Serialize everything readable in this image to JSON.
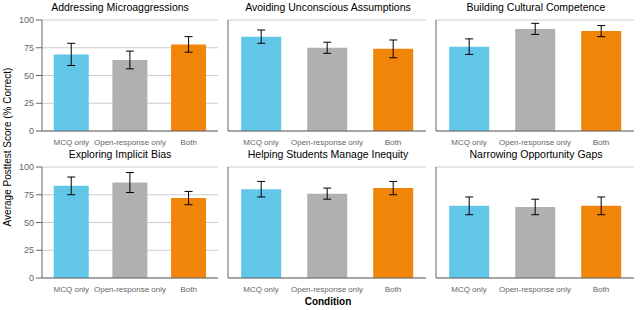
{
  "chart_data": [
    {
      "type": "bar",
      "title": "Addressing Microaggressions",
      "categories": [
        "MCQ only",
        "Open-response only",
        "Both"
      ],
      "values": [
        69,
        64,
        78
      ],
      "errors": [
        10,
        8,
        7
      ],
      "colors": [
        "#62C6E8",
        "#B0B0B0",
        "#F0850A"
      ],
      "ylim": [
        0,
        100
      ],
      "yticks": [
        0,
        25,
        50,
        75,
        100
      ],
      "grid": true,
      "ylabel": "Average Posttest Score (% Correct)"
    },
    {
      "type": "bar",
      "title": "Avoiding Unconscious Assumptions",
      "categories": [
        "MCQ only",
        "Open-response only",
        "Both"
      ],
      "values": [
        85,
        75,
        74
      ],
      "errors": [
        6,
        5,
        8
      ],
      "colors": [
        "#62C6E8",
        "#B0B0B0",
        "#F0850A"
      ],
      "ylim": [
        0,
        100
      ],
      "yticks": [
        0,
        25,
        50,
        75,
        100
      ],
      "grid": true,
      "tick_labels": "x"
    },
    {
      "type": "bar",
      "title": "Building Cultural Competence",
      "categories": [
        "MCQ only",
        "Open-response only",
        "Both"
      ],
      "values": [
        76,
        92,
        90
      ],
      "errors": [
        7,
        5,
        5
      ],
      "colors": [
        "#62C6E8",
        "#B0B0B0",
        "#F0850A"
      ],
      "ylim": [
        0,
        100
      ],
      "yticks": [
        0,
        25,
        50,
        75,
        100
      ],
      "grid": true,
      "tick_labels": "x"
    },
    {
      "type": "bar",
      "title": "Exploring Implicit Bias",
      "categories": [
        "MCQ only",
        "Open-response only",
        "Both"
      ],
      "values": [
        83,
        86,
        72
      ],
      "errors": [
        8,
        9,
        6
      ],
      "colors": [
        "#62C6E8",
        "#B0B0B0",
        "#F0850A"
      ],
      "ylim": [
        0,
        100
      ],
      "yticks": [
        0,
        25,
        50,
        75,
        100
      ],
      "grid": true
    },
    {
      "type": "bar",
      "title": "Helping Students Manage Inequity",
      "categories": [
        "MCQ only",
        "Open-response only",
        "Both"
      ],
      "values": [
        80,
        76,
        81
      ],
      "errors": [
        7,
        5,
        6
      ],
      "colors": [
        "#62C6E8",
        "#B0B0B0",
        "#F0850A"
      ],
      "ylim": [
        0,
        100
      ],
      "yticks": [
        0,
        25,
        50,
        75,
        100
      ],
      "grid": true,
      "tick_labels": "x",
      "xlabel": "Condition"
    },
    {
      "type": "bar",
      "title": "Narrowing Opportunity Gaps",
      "categories": [
        "MCQ only",
        "Open-response only",
        "Both"
      ],
      "values": [
        65,
        64,
        65
      ],
      "errors": [
        8,
        7,
        8
      ],
      "colors": [
        "#62C6E8",
        "#B0B0B0",
        "#F0850A"
      ],
      "ylim": [
        0,
        100
      ],
      "yticks": [
        0,
        25,
        50,
        75,
        100
      ],
      "grid": true,
      "tick_labels": "x"
    }
  ]
}
